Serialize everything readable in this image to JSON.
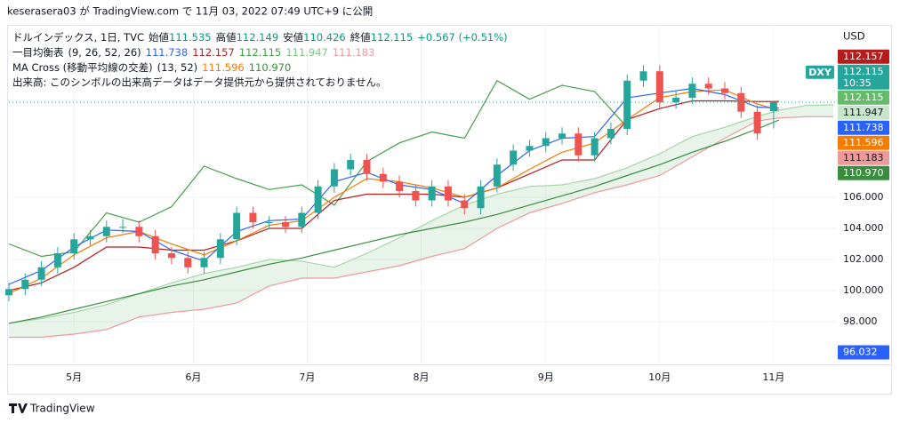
{
  "caption": "keserasera03 が TradingView.com で 11月 03, 2022 07:49 UTC+9 に公開",
  "footer": "TradingView",
  "chart_data": {
    "type": "candlestick",
    "header": {
      "symbol": "ドルインデックス, 1日, TVC",
      "value_color": "#089981",
      "ohlc": [
        {
          "label": "始値",
          "value": 111.535
        },
        {
          "label": "高値",
          "value": 112.149
        },
        {
          "label": "安値",
          "value": 110.426
        },
        {
          "label": "終値",
          "value": 112.115
        }
      ],
      "change": "+0.567 (+0.51%)"
    },
    "indicators": [
      {
        "name": "一目均衡表",
        "params": "(9, 26, 52, 26)",
        "values": [
          {
            "value": 111.738,
            "color": "#2962ff"
          },
          {
            "value": 112.157,
            "color": "#b71c1c"
          },
          {
            "value": 112.115,
            "color": "#43a047"
          },
          {
            "value": 111.947,
            "color": "#81c784"
          },
          {
            "value": 111.183,
            "color": "#ef9a9a"
          }
        ]
      },
      {
        "name": "MA Cross (移動平均線の交差)",
        "params": "(13, 52)",
        "values": [
          {
            "value": 111.596,
            "color": "#f57c00"
          },
          {
            "value": {
              "v": 110.97,
              "label": "110.970"
            },
            "color": "#388e3c"
          }
        ]
      }
    ],
    "volume_note": "出来高: このシンボルの出来高データはデータ提供元から提供されておりません。",
    "y_axis_label": "USD",
    "symbol_badge": "DXY",
    "up_color": "#26a69a",
    "down_color": "#ef5350",
    "xlim": [
      0,
      152.5
    ],
    "ylim": [
      95.26,
      116.97
    ],
    "xticks": [
      {
        "value": 12,
        "label": "5月"
      },
      {
        "value": 34,
        "label": "6月"
      },
      {
        "value": 55,
        "label": "7月"
      },
      {
        "value": 76,
        "label": "8月"
      },
      {
        "value": 99,
        "label": "9月"
      },
      {
        "value": 120,
        "label": "10月"
      },
      {
        "value": 141,
        "label": "11月"
      }
    ],
    "yticks": [
      {
        "value": 98,
        "label": "98.000"
      },
      {
        "value": 100,
        "label": "100.000"
      },
      {
        "value": 102,
        "label": "102.000"
      },
      {
        "value": 104,
        "label": "104.000"
      },
      {
        "value": 106,
        "label": "106.000"
      }
    ],
    "grid": true,
    "x": [
      0,
      3,
      6,
      9,
      12,
      15,
      18,
      21,
      24,
      27,
      30,
      33,
      36,
      39,
      42,
      45,
      48,
      51,
      54,
      57,
      60,
      63,
      66,
      69,
      72,
      75,
      78,
      81,
      84,
      87,
      90,
      93,
      96,
      99,
      102,
      105,
      108,
      111,
      114,
      117,
      120,
      123,
      126,
      129,
      132,
      135,
      138,
      141
    ],
    "open": [
      99.7,
      100.1,
      100.7,
      101.5,
      102.4,
      103.3,
      103.5,
      104.1,
      104.1,
      103.5,
      102.4,
      102.1,
      101.5,
      102.1,
      103.3,
      105.0,
      104.4,
      104.4,
      104.1,
      105.0,
      106.7,
      107.8,
      108.4,
      107.5,
      107.0,
      106.4,
      105.8,
      106.7,
      105.8,
      105.3,
      106.7,
      108.1,
      109.0,
      109.3,
      109.8,
      110.1,
      108.7,
      109.8,
      110.4,
      113.5,
      114.1,
      112.1,
      112.4,
      113.3,
      113.0,
      112.7,
      111.5,
      111.535
    ],
    "high": [
      100.5,
      101.1,
      101.9,
      102.8,
      103.7,
      103.9,
      104.5,
      104.6,
      104.5,
      103.9,
      102.8,
      102.5,
      102.5,
      103.7,
      105.4,
      105.4,
      104.8,
      104.8,
      105.4,
      107.1,
      108.2,
      108.8,
      108.8,
      107.9,
      107.4,
      106.8,
      107.1,
      107.1,
      106.2,
      107.1,
      108.5,
      109.4,
      109.7,
      110.2,
      110.5,
      110.5,
      110.2,
      110.8,
      113.9,
      114.5,
      114.5,
      112.8,
      113.7,
      113.7,
      113.4,
      113.1,
      111.9,
      112.149
    ],
    "low": [
      99.3,
      99.7,
      100.3,
      101.1,
      102.0,
      102.9,
      103.1,
      103.7,
      103.1,
      102.0,
      101.7,
      101.1,
      101.1,
      101.7,
      102.9,
      104.0,
      104.0,
      103.7,
      103.7,
      104.6,
      106.3,
      107.4,
      107.1,
      106.6,
      106.0,
      105.4,
      105.4,
      105.4,
      104.9,
      104.9,
      106.3,
      107.7,
      108.6,
      108.9,
      109.4,
      108.3,
      108.3,
      109.4,
      110.0,
      113.1,
      111.7,
      111.7,
      112.0,
      112.6,
      112.3,
      111.1,
      109.7,
      110.426
    ],
    "close": [
      100.1,
      100.7,
      101.5,
      102.4,
      103.3,
      103.5,
      104.1,
      104.1,
      103.5,
      102.4,
      102.1,
      101.5,
      102.1,
      103.3,
      105.0,
      104.4,
      104.4,
      104.1,
      105.0,
      106.7,
      107.8,
      108.4,
      107.5,
      107.0,
      106.4,
      105.8,
      106.7,
      105.8,
      105.3,
      106.7,
      108.1,
      109.0,
      109.3,
      109.8,
      110.1,
      108.7,
      109.8,
      110.4,
      113.5,
      114.1,
      112.1,
      112.4,
      113.3,
      113.0,
      112.7,
      111.5,
      110.1,
      112.115
    ],
    "line_x": [
      0,
      6,
      12,
      18,
      24,
      30,
      36,
      42,
      48,
      54,
      60,
      66,
      72,
      78,
      84,
      90,
      96,
      102,
      108,
      114,
      120,
      126,
      132,
      138,
      142,
      147,
      152
    ],
    "cloud_color": "rgba(67,160,71,0.12)",
    "lines": [
      {
        "color": "#ef9a9a",
        "values": [
          97.0,
          97.0,
          97.2,
          97.5,
          98.3,
          98.6,
          98.8,
          99.2,
          100.3,
          100.8,
          100.8,
          101.2,
          101.6,
          102.2,
          102.7,
          104.0,
          105.0,
          105.6,
          106.3,
          106.8,
          107.4,
          108.6,
          109.8,
          110.9,
          111.1,
          111.183,
          111.183
        ]
      },
      {
        "color": "#a5d6a7",
        "values": [
          97.9,
          98.2,
          98.6,
          99.1,
          99.8,
          100.5,
          101.1,
          101.5,
          102.0,
          101.9,
          101.5,
          102.4,
          103.4,
          104.5,
          105.5,
          106.2,
          106.7,
          106.8,
          107.2,
          107.9,
          108.8,
          109.9,
          110.5,
          111.2,
          111.6,
          111.9,
          111.947
        ]
      },
      {
        "color": "#388e3c",
        "values": [
          97.9,
          98.3,
          98.8,
          99.3,
          99.8,
          100.3,
          100.7,
          101.2,
          101.7,
          102.1,
          102.6,
          103.1,
          103.6,
          104.0,
          104.4,
          104.9,
          105.5,
          106.1,
          106.7,
          107.4,
          108.1,
          108.9,
          109.6,
          110.4,
          110.97,
          null,
          null
        ]
      },
      {
        "color": "#43a047",
        "values": [
          103.0,
          102.2,
          102.5,
          105.0,
          104.4,
          105.4,
          108.0,
          107.2,
          106.5,
          106.8,
          105.5,
          108.3,
          109.5,
          110.2,
          109.8,
          113.5,
          112.3,
          113.2,
          112.8,
          110.5,
          null,
          null,
          null,
          null,
          null,
          null,
          null
        ]
      },
      {
        "color": "#b71c1c",
        "values": [
          100.0,
          100.5,
          101.5,
          102.8,
          102.8,
          102.6,
          102.6,
          103.2,
          104.0,
          104.0,
          105.8,
          106.2,
          106.2,
          106.2,
          106.0,
          106.6,
          107.5,
          108.4,
          108.4,
          111.0,
          111.7,
          112.2,
          112.2,
          112.157,
          112.157,
          null,
          null
        ]
      },
      {
        "color": "#f57c00",
        "values": [
          99.8,
          100.8,
          102.3,
          103.4,
          103.8,
          103.0,
          102.3,
          103.2,
          104.2,
          104.5,
          106.0,
          107.2,
          107.0,
          106.6,
          106.0,
          106.6,
          107.8,
          108.9,
          109.5,
          111.0,
          112.4,
          112.8,
          112.9,
          112.0,
          111.596,
          null,
          null
        ]
      },
      {
        "color": "#2962ff",
        "values": [
          100.4,
          101.3,
          102.8,
          103.9,
          103.8,
          102.6,
          101.9,
          103.8,
          104.5,
          104.6,
          107.0,
          107.6,
          106.8,
          106.5,
          105.6,
          107.4,
          109.0,
          109.8,
          109.9,
          112.4,
          112.7,
          113.0,
          112.6,
          111.8,
          111.738,
          null,
          null
        ]
      }
    ],
    "price_labels": [
      {
        "value": 112.157,
        "label": "112.157",
        "color": "#b71c1c",
        "text_color": "#ffffff"
      },
      {
        "value": 112.115,
        "label": "112.115",
        "sub": "10:35",
        "color": "#26a69a",
        "text_color": "#ffffff"
      },
      {
        "value": 112.115,
        "label": "112.115",
        "color": "#66bb6a",
        "text_color": "#ffffff"
      },
      {
        "value": 111.947,
        "label": "111.947",
        "color": "#c8e6c9",
        "text_color": "#131722"
      },
      {
        "value": 111.738,
        "label": "111.738",
        "color": "#2962ff",
        "text_color": "#ffffff"
      },
      {
        "value": 111.596,
        "label": "111.596",
        "color": "#f57c00",
        "text_color": "#ffffff"
      },
      {
        "value": 111.183,
        "label": "111.183",
        "color": "#ef9a9a",
        "text_color": "#131722"
      },
      {
        "value": 110.97,
        "label": "110.970",
        "color": "#388e3c",
        "text_color": "#ffffff"
      }
    ],
    "marker_label": {
      "value": 96.032,
      "label": "96.032",
      "color": "#2962ff",
      "text_color": "#ffffff"
    }
  }
}
